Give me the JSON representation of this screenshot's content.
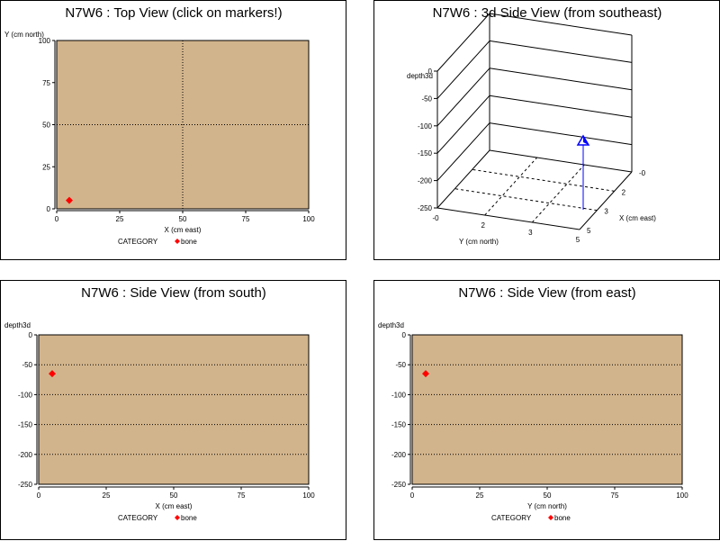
{
  "chart_data": [
    {
      "id": "top",
      "type": "scatter",
      "title": "N7W6 : Top View (click on markers!)",
      "xlabel": "X (cm east)",
      "ylabel": "Y (cm north)",
      "xlim": [
        0,
        100
      ],
      "ylim": [
        0,
        100
      ],
      "xticks": [
        0,
        25,
        50,
        75,
        100
      ],
      "yticks": [
        0,
        25,
        50,
        75,
        100
      ],
      "grid": "dotted reference lines at x=50 and y=50",
      "plot_background": "#D2B48C",
      "legend": {
        "label": "CATEGORY",
        "entries": [
          "bone"
        ],
        "placement": "bottom-center"
      },
      "series": [
        {
          "name": "bone",
          "color": "#FF0000",
          "marker": "diamond",
          "points": [
            {
              "x": 5,
              "y": 5
            }
          ]
        }
      ]
    },
    {
      "id": "side3d",
      "type": "scatter3d",
      "title": "N7W6 : 3d Side View (from southeast)",
      "zlabel": "depth3d",
      "xlabel": "X (cm east)",
      "ylabel": "Y (cm north)",
      "zticks": [
        "0",
        "-50",
        "-100",
        "-150",
        "-200",
        "-250"
      ],
      "xticks": [
        "-0",
        "2",
        "3",
        "5"
      ],
      "yticks": [
        "-0",
        "2",
        "3",
        "5"
      ],
      "series": [
        {
          "name": "bone",
          "color": "#0000FF",
          "marker": "pyramid with needle",
          "points": [
            {
              "x": 5,
              "y": 5,
              "z": -65
            }
          ]
        }
      ]
    },
    {
      "id": "south",
      "type": "scatter",
      "title": "N7W6 : Side View (from south)",
      "xlabel": "X (cm east)",
      "ylabel": "depth3d",
      "xlim": [
        0,
        100
      ],
      "ylim": [
        -250,
        0
      ],
      "xticks": [
        0,
        25,
        50,
        75,
        100
      ],
      "yticks": [
        0,
        -50,
        -100,
        -150,
        -200,
        -250
      ],
      "grid": "dotted horizontal lines at -50, -100, -150, -200",
      "plot_background": "#D2B48C",
      "legend": {
        "label": "CATEGORY",
        "entries": [
          "bone"
        ],
        "placement": "bottom-center"
      },
      "series": [
        {
          "name": "bone",
          "color": "#FF0000",
          "marker": "diamond",
          "points": [
            {
              "x": 5,
              "y": -65
            }
          ]
        }
      ]
    },
    {
      "id": "east",
      "type": "scatter",
      "title": "N7W6 : Side View (from east)",
      "xlabel": "Y (cm north)",
      "ylabel": "depth3d",
      "xlim": [
        0,
        100
      ],
      "ylim": [
        -250,
        0
      ],
      "xticks": [
        0,
        25,
        50,
        75,
        100
      ],
      "yticks": [
        0,
        -50,
        -100,
        -150,
        -200,
        -250
      ],
      "grid": "dotted horizontal lines at -50, -100, -150, -200",
      "plot_background": "#D2B48C",
      "legend": {
        "label": "CATEGORY",
        "entries": [
          "bone"
        ],
        "placement": "bottom-center"
      },
      "series": [
        {
          "name": "bone",
          "color": "#FF0000",
          "marker": "diamond",
          "points": [
            {
              "x": 5,
              "y": -65
            }
          ]
        }
      ]
    }
  ]
}
